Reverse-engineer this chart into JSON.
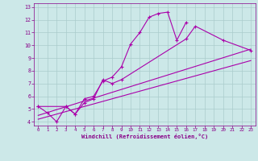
{
  "xlabel": "Windchill (Refroidissement éolien,°C)",
  "background_color": "#cce8e8",
  "grid_color": "#aacccc",
  "line_color": "#aa00aa",
  "xlim": [
    -0.5,
    23.5
  ],
  "ylim": [
    3.7,
    13.3
  ],
  "xticks": [
    0,
    1,
    2,
    3,
    4,
    5,
    6,
    7,
    8,
    9,
    10,
    11,
    12,
    13,
    14,
    15,
    16,
    17,
    18,
    19,
    20,
    21,
    22,
    23
  ],
  "yticks": [
    4,
    5,
    6,
    7,
    8,
    9,
    10,
    11,
    12,
    13
  ],
  "series1_x": [
    0,
    1,
    2,
    3,
    4,
    5,
    6,
    7,
    8,
    9,
    10,
    11,
    12,
    13,
    14,
    15,
    16
  ],
  "series1_y": [
    5.2,
    4.7,
    4.0,
    5.2,
    4.6,
    5.8,
    6.0,
    7.2,
    7.5,
    8.3,
    10.1,
    11.0,
    12.2,
    12.5,
    12.6,
    10.4,
    11.8
  ],
  "series2_x": [
    0,
    3,
    4,
    5,
    6,
    7,
    8,
    9,
    16,
    17,
    20,
    23
  ],
  "series2_y": [
    5.2,
    5.2,
    4.6,
    5.5,
    5.8,
    7.3,
    7.0,
    7.3,
    10.5,
    11.5,
    10.4,
    9.6
  ],
  "line3_x": [
    0,
    23
  ],
  "line3_y": [
    4.5,
    9.7
  ],
  "line4_x": [
    0,
    23
  ],
  "line4_y": [
    4.2,
    8.8
  ]
}
